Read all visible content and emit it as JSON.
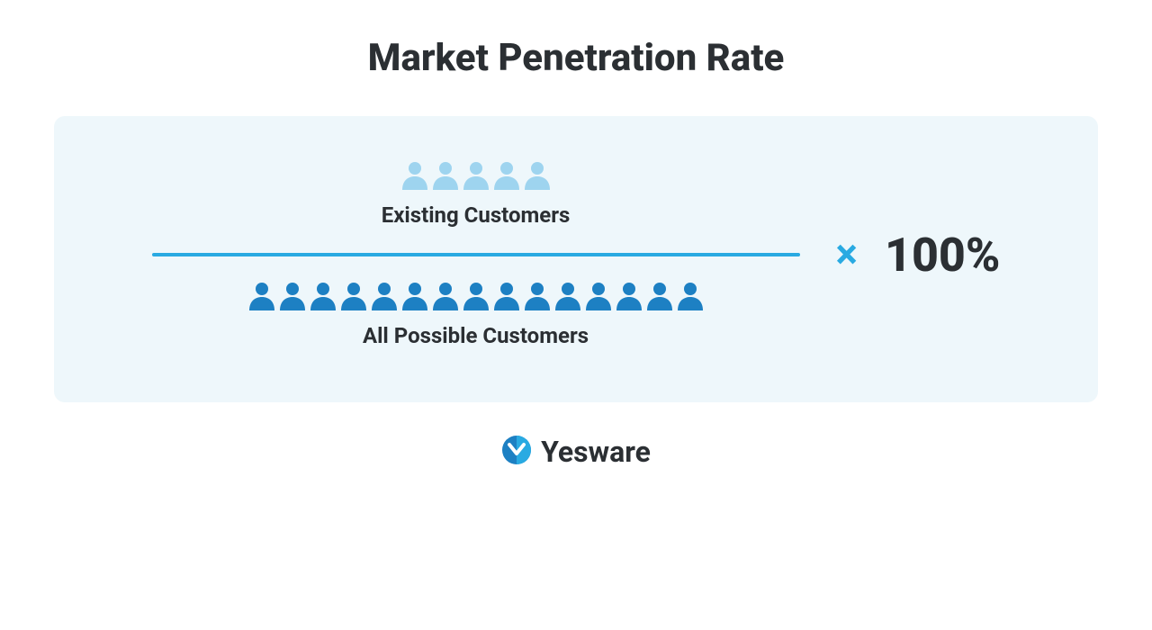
{
  "title": "Market Penetration Rate",
  "panel": {
    "background": "#eef7fb",
    "numerator": {
      "label": "Existing Customers",
      "icon_count": 5,
      "icon_color": "#9ed4ef"
    },
    "divider_color": "#29aae2",
    "denominator": {
      "label": "All Possible Customers",
      "icon_count": 15,
      "icon_color": "#1d80c3"
    },
    "multiply_symbol": "×",
    "multiply_color": "#29aae2",
    "multiply_value": "100%"
  },
  "brand": {
    "name": "Yesware",
    "logo_color_primary": "#1d80c3",
    "logo_color_secondary": "#29aae2"
  },
  "person_icon": {
    "width": 28,
    "height": 32
  },
  "typography": {
    "title_fontsize": 42,
    "label_fontsize": 24,
    "value_fontsize": 52,
    "brand_fontsize": 32,
    "text_color": "#2b2f33"
  }
}
